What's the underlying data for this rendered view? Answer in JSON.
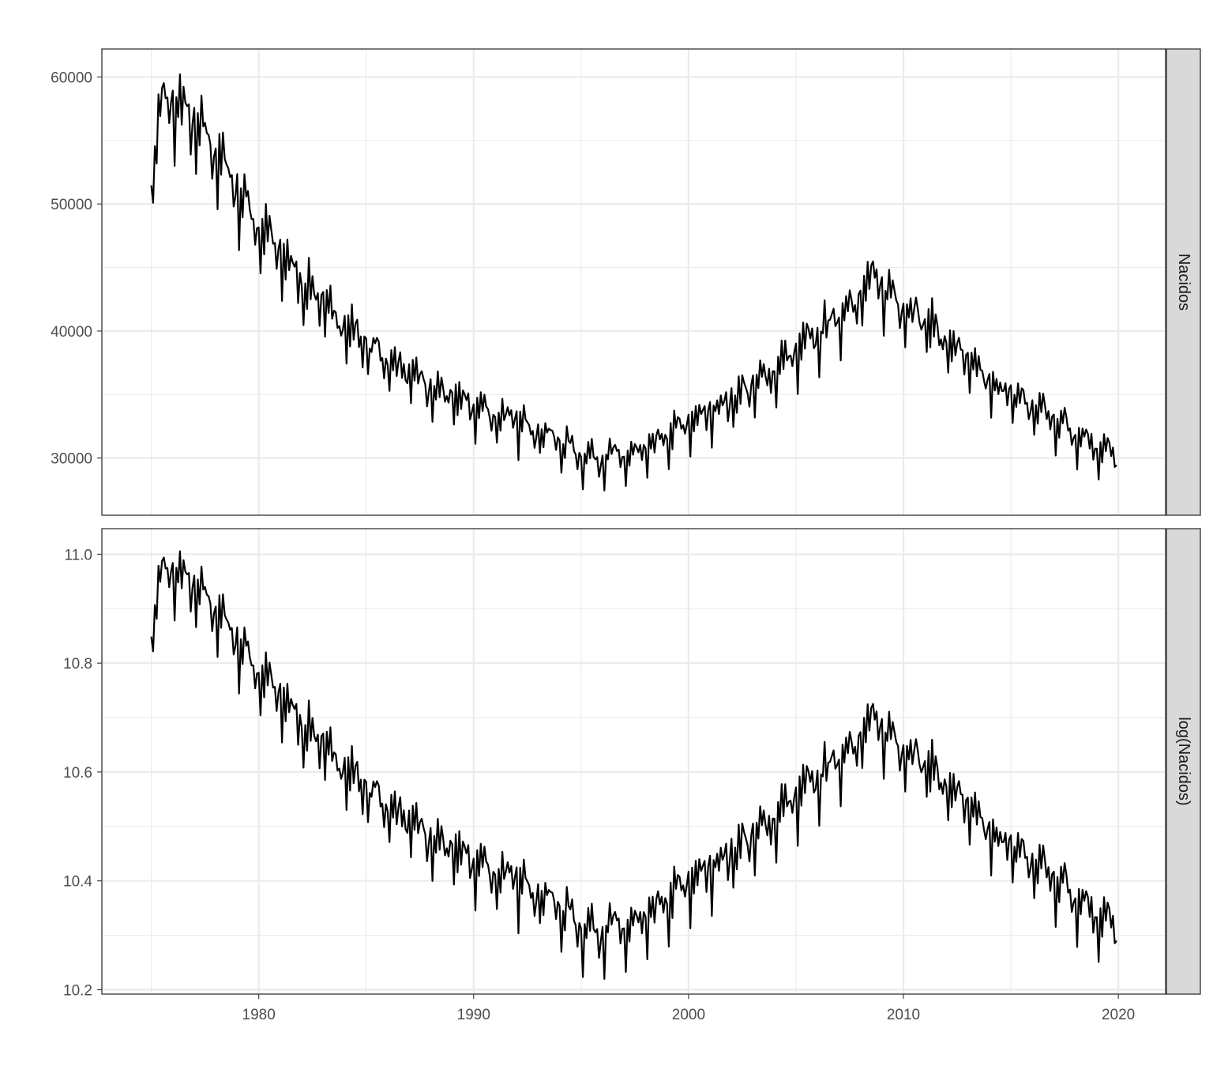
{
  "chart_data": {
    "type": "line",
    "title": "",
    "xlabel": "",
    "ylabel": "",
    "grid": true,
    "legend": "none",
    "facet": "vertical, shared x-axis, facet labels in right-hand strips",
    "series_color": "#000000",
    "panel_border_color": "#333333",
    "strip_fill": "#d9d9d9",
    "grid_color": "#ebebeb",
    "xlim": [
      1972.7,
      2022.2
    ],
    "x_ticks": [
      1980,
      1990,
      2000,
      2010,
      2020
    ],
    "x_tick_labels": [
      "1980",
      "1990",
      "2000",
      "2010",
      "2020"
    ],
    "trend_anchors": {
      "x": [
        1975.0,
        1975.5,
        1976.3,
        1978.0,
        1980.0,
        1982.5,
        1985.0,
        1988.0,
        1991.0,
        1993.0,
        1995.2,
        1997.5,
        2000.0,
        2003.0,
        2006.0,
        2008.6,
        2011.0,
        2014.0,
        2017.0,
        2019.0,
        2020.0
      ],
      "y": [
        52000,
        57800,
        57500,
        54000,
        48000,
        42800,
        38800,
        35300,
        33300,
        32200,
        30000,
        30000,
        32600,
        35500,
        39500,
        43800,
        40700,
        35800,
        33000,
        30900,
        29800
      ]
    },
    "panels": [
      {
        "strip": "Nacidos",
        "ylim": [
          25500,
          62200
        ],
        "y_ticks": [
          30000,
          40000,
          50000,
          60000
        ],
        "y_tick_labels": [
          "30000",
          "40000",
          "50000",
          "60000"
        ]
      },
      {
        "strip": "log(Nacidos)",
        "ylim": [
          10.192,
          11.047
        ],
        "y_ticks": [
          10.2,
          10.4,
          10.6,
          10.8,
          11.0
        ],
        "y_tick_labels": [
          "10.2",
          "10.4",
          "10.6",
          "10.8",
          "11.0"
        ]
      }
    ]
  }
}
